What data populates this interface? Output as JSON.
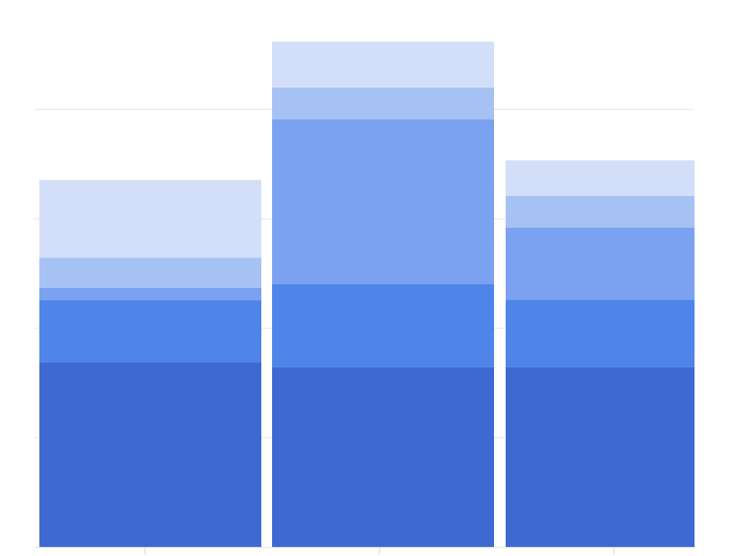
{
  "chart_data": {
    "type": "bar",
    "stacked": true,
    "categories": [
      "",
      "",
      ""
    ],
    "ylim": [
      0,
      100
    ],
    "grid": true,
    "legend": "none",
    "series": [
      {
        "values": [
          33.8,
          32.9,
          32.9
        ],
        "color": "#3d69d1"
      },
      {
        "values": [
          11.3,
          15.2,
          12.3
        ],
        "color": "#4f84e8"
      },
      {
        "values": [
          2.3,
          30.1,
          13.2
        ],
        "color": "#7ba2f0"
      },
      {
        "values": [
          5.5,
          5.8,
          5.8
        ],
        "color": "#a6c1f4"
      },
      {
        "values": [
          14.2,
          8.4,
          6.5
        ],
        "color": "#d3dff8"
      }
    ]
  }
}
